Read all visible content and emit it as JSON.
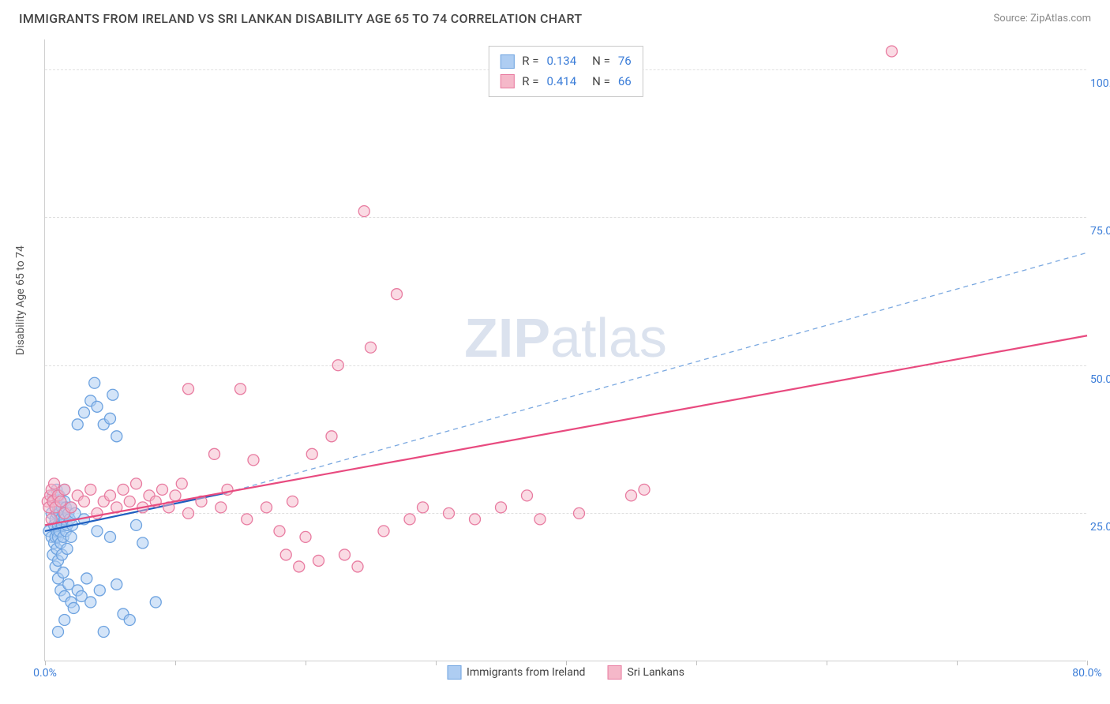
{
  "title": "IMMIGRANTS FROM IRELAND VS SRI LANKAN DISABILITY AGE 65 TO 74 CORRELATION CHART",
  "source": "Source: ZipAtlas.com",
  "y_axis_label": "Disability Age 65 to 74",
  "watermark_bold": "ZIP",
  "watermark_light": "atlas",
  "chart": {
    "type": "scatter",
    "xlim": [
      0,
      80
    ],
    "ylim": [
      0,
      105
    ],
    "x_ticks": [
      0,
      10,
      20,
      30,
      40,
      50,
      60,
      70,
      80
    ],
    "y_ticks": [
      25,
      50,
      75,
      100
    ],
    "x_tick_labels": {
      "0": "0.0%",
      "80": "80.0%"
    },
    "y_tick_labels": {
      "25": "25.0%",
      "50": "50.0%",
      "75": "75.0%",
      "100": "100.0%"
    },
    "grid_color": "#e0e0e0",
    "background_color": "#ffffff",
    "axis_label_color": "#3b7dd8",
    "series": [
      {
        "name": "Immigrants from Ireland",
        "color_fill": "#aecdf2",
        "color_stroke": "#6ea3e0",
        "marker_radius": 7,
        "fill_opacity": 0.55,
        "R": "0.134",
        "N": "76",
        "trend": {
          "x1": 0,
          "y1": 22,
          "x2": 14,
          "y2": 28.5,
          "solid_color": "#1f5fc0",
          "solid_width": 2.2
        },
        "trend_dash": {
          "x1": 14,
          "y1": 28.5,
          "x2": 80,
          "y2": 69,
          "dash_color": "#7aa8e0",
          "dash_width": 1.3
        },
        "points": [
          [
            0.3,
            22
          ],
          [
            0.5,
            21
          ],
          [
            0.5,
            25
          ],
          [
            0.6,
            28
          ],
          [
            0.6,
            18
          ],
          [
            0.7,
            23
          ],
          [
            0.7,
            20
          ],
          [
            0.7,
            27
          ],
          [
            0.8,
            24
          ],
          [
            0.8,
            21
          ],
          [
            0.8,
            16
          ],
          [
            0.9,
            25
          ],
          [
            0.9,
            22
          ],
          [
            0.9,
            19
          ],
          [
            0.9,
            29
          ],
          [
            1.0,
            23
          ],
          [
            1.0,
            26
          ],
          [
            1.0,
            17
          ],
          [
            1.0,
            21
          ],
          [
            1.0,
            14
          ],
          [
            1.1,
            25
          ],
          [
            1.1,
            22
          ],
          [
            1.1,
            28
          ],
          [
            1.2,
            20
          ],
          [
            1.2,
            24
          ],
          [
            1.2,
            12
          ],
          [
            1.2,
            27
          ],
          [
            1.3,
            23
          ],
          [
            1.3,
            18
          ],
          [
            1.3,
            26
          ],
          [
            1.4,
            25
          ],
          [
            1.4,
            21
          ],
          [
            1.4,
            15
          ],
          [
            1.5,
            24
          ],
          [
            1.5,
            27
          ],
          [
            1.5,
            11
          ],
          [
            1.5,
            29
          ],
          [
            1.6,
            22
          ],
          [
            1.6,
            26
          ],
          [
            1.7,
            23
          ],
          [
            1.7,
            19
          ],
          [
            1.8,
            25
          ],
          [
            1.8,
            13
          ],
          [
            1.9,
            24
          ],
          [
            2.0,
            26
          ],
          [
            2.0,
            21
          ],
          [
            2.0,
            10
          ],
          [
            2.1,
            23
          ],
          [
            2.2,
            9
          ],
          [
            2.3,
            25
          ],
          [
            2.5,
            12
          ],
          [
            2.5,
            40
          ],
          [
            2.8,
            11
          ],
          [
            3.0,
            24
          ],
          [
            3.0,
            42
          ],
          [
            3.2,
            14
          ],
          [
            3.5,
            44
          ],
          [
            3.5,
            10
          ],
          [
            3.8,
            47
          ],
          [
            4.0,
            22
          ],
          [
            4.0,
            43
          ],
          [
            4.2,
            12
          ],
          [
            4.5,
            40
          ],
          [
            4.5,
            5
          ],
          [
            5.0,
            41
          ],
          [
            5.0,
            21
          ],
          [
            5.2,
            45
          ],
          [
            5.5,
            38
          ],
          [
            5.5,
            13
          ],
          [
            6.0,
            8
          ],
          [
            6.5,
            7
          ],
          [
            7.0,
            23
          ],
          [
            7.5,
            20
          ],
          [
            8.5,
            10
          ],
          [
            1.0,
            5
          ],
          [
            1.5,
            7
          ]
        ]
      },
      {
        "name": "Sri Lankans",
        "color_fill": "#f5b8c9",
        "color_stroke": "#e87ba0",
        "marker_radius": 7,
        "fill_opacity": 0.5,
        "R": "0.414",
        "N": "66",
        "trend": {
          "x1": 0,
          "y1": 23,
          "x2": 80,
          "y2": 55,
          "solid_color": "#e84a7f",
          "solid_width": 2.2
        },
        "points": [
          [
            0.2,
            27
          ],
          [
            0.3,
            26
          ],
          [
            0.4,
            28
          ],
          [
            0.5,
            24
          ],
          [
            0.5,
            29
          ],
          [
            0.6,
            27
          ],
          [
            0.7,
            30
          ],
          [
            0.8,
            26
          ],
          [
            1.0,
            28
          ],
          [
            1.2,
            27
          ],
          [
            1.5,
            29
          ],
          [
            1.5,
            25
          ],
          [
            2.0,
            26
          ],
          [
            2.5,
            28
          ],
          [
            3.0,
            27
          ],
          [
            3.5,
            29
          ],
          [
            4.0,
            25
          ],
          [
            4.5,
            27
          ],
          [
            5.0,
            28
          ],
          [
            5.5,
            26
          ],
          [
            6.0,
            29
          ],
          [
            6.5,
            27
          ],
          [
            7.0,
            30
          ],
          [
            7.5,
            26
          ],
          [
            8.0,
            28
          ],
          [
            8.5,
            27
          ],
          [
            9.0,
            29
          ],
          [
            9.5,
            26
          ],
          [
            10.0,
            28
          ],
          [
            10.5,
            30
          ],
          [
            11.0,
            25
          ],
          [
            11.0,
            46
          ],
          [
            12.0,
            27
          ],
          [
            13.0,
            35
          ],
          [
            13.5,
            26
          ],
          [
            14.0,
            29
          ],
          [
            15.0,
            46
          ],
          [
            15.5,
            24
          ],
          [
            16.0,
            34
          ],
          [
            17.0,
            26
          ],
          [
            18.0,
            22
          ],
          [
            18.5,
            18
          ],
          [
            19.0,
            27
          ],
          [
            19.5,
            16
          ],
          [
            20.0,
            21
          ],
          [
            20.5,
            35
          ],
          [
            21.0,
            17
          ],
          [
            22.0,
            38
          ],
          [
            22.5,
            50
          ],
          [
            23.0,
            18
          ],
          [
            24.0,
            16
          ],
          [
            25.0,
            53
          ],
          [
            26.0,
            22
          ],
          [
            27.0,
            62
          ],
          [
            28.0,
            24
          ],
          [
            29.0,
            26
          ],
          [
            31.0,
            25
          ],
          [
            33.0,
            24
          ],
          [
            35.0,
            26
          ],
          [
            37.0,
            28
          ],
          [
            38.0,
            24
          ],
          [
            41.0,
            25
          ],
          [
            45.0,
            28
          ],
          [
            46.0,
            29
          ],
          [
            65.0,
            103
          ],
          [
            24.5,
            76
          ]
        ]
      }
    ],
    "legend_bottom": [
      {
        "label": "Immigrants from Ireland",
        "fill": "#aecdf2",
        "stroke": "#6ea3e0"
      },
      {
        "label": "Sri Lankans",
        "fill": "#f5b8c9",
        "stroke": "#e87ba0"
      }
    ]
  }
}
